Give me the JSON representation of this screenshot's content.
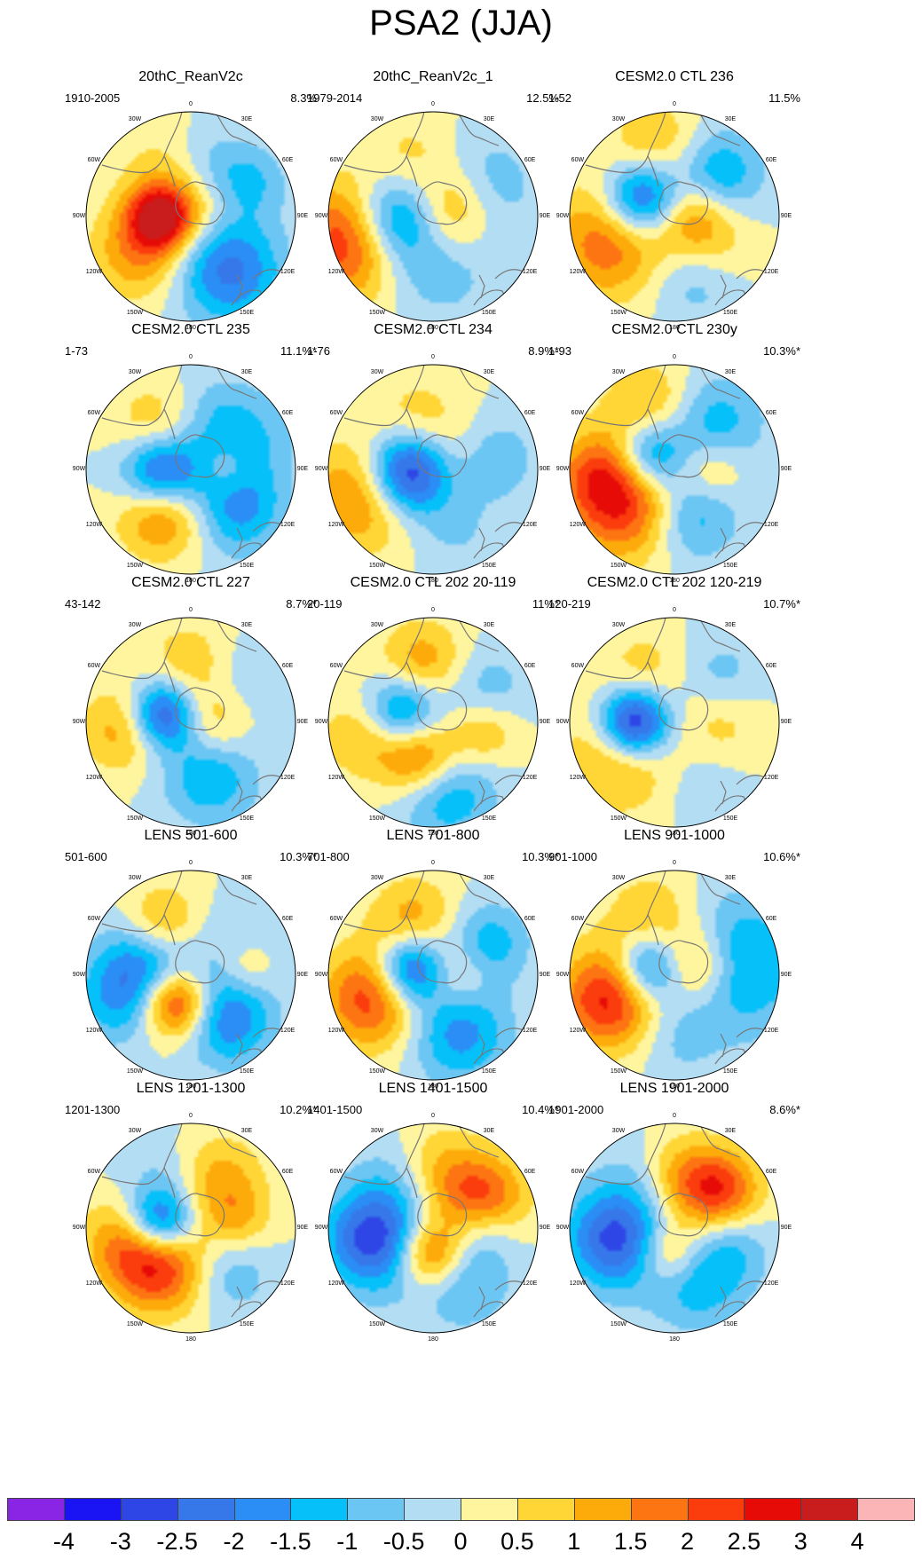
{
  "figure": {
    "title": "PSA2 (JJA)"
  },
  "longitude_labels": [
    "0",
    "30E",
    "60E",
    "90E",
    "120E",
    "150E",
    "180",
    "150W",
    "120W",
    "90W",
    "60W",
    "30W"
  ],
  "panels": [
    {
      "title": "20thC_ReanV2c",
      "range": "1910-2005",
      "pct": "8.3%",
      "blobs": [
        [
          -90,
          0.28,
          3.2,
          32,
          22
        ],
        [
          -125,
          0.6,
          1.5,
          52,
          28
        ],
        [
          145,
          0.62,
          -2.2,
          60,
          30
        ],
        [
          -30,
          0.55,
          0.6,
          45,
          30
        ],
        [
          60,
          0.65,
          -1,
          40,
          22
        ],
        [
          60,
          0.2,
          0.5,
          30,
          25
        ],
        [
          20,
          0.55,
          -0.6,
          40,
          25
        ]
      ]
    },
    {
      "title": "20thC_ReanV2c_1",
      "range": "1979-2014",
      "pct": "12.5%",
      "blobs": [
        [
          -95,
          0.38,
          -3,
          28,
          50
        ],
        [
          -105,
          0.78,
          3,
          32,
          65
        ],
        [
          70,
          0.2,
          1.6,
          35,
          30
        ],
        [
          -20,
          0.55,
          0.8,
          40,
          35
        ],
        [
          60,
          0.55,
          -1,
          45,
          40
        ],
        [
          160,
          0.65,
          -0.5,
          40,
          30
        ],
        [
          -160,
          0.6,
          -0.5,
          40,
          30
        ]
      ]
    },
    {
      "title": "CESM2.0 CTL 236",
      "range": "1-52",
      "pct": "11.5%",
      "blobs": [
        [
          -60,
          0.35,
          -3.2,
          30,
          32
        ],
        [
          -110,
          0.65,
          2,
          52,
          40
        ],
        [
          90,
          0.18,
          1.8,
          38,
          28
        ],
        [
          45,
          0.55,
          -1.8,
          42,
          30
        ],
        [
          -15,
          0.65,
          1.2,
          45,
          32
        ],
        [
          160,
          0.6,
          -1,
          45,
          30
        ],
        [
          130,
          0.55,
          0.6,
          40,
          28
        ]
      ]
    },
    {
      "title": "CESM2.0 CTL 235",
      "range": "1-73",
      "pct": "11.1%*",
      "blobs": [
        [
          -100,
          0.28,
          -3.5,
          30,
          35
        ],
        [
          -145,
          0.45,
          2.5,
          45,
          28
        ],
        [
          130,
          0.55,
          -1.8,
          38,
          38
        ],
        [
          -40,
          0.5,
          1.2,
          40,
          30
        ],
        [
          60,
          0.6,
          -1,
          45,
          35
        ],
        [
          90,
          0.35,
          0.8,
          25,
          20
        ],
        [
          20,
          0.55,
          -0.6,
          40,
          28
        ]
      ]
    },
    {
      "title": "CESM2.0 CTL 234",
      "range": "1-76",
      "pct": "8.9%*",
      "blobs": [
        [
          -95,
          0.22,
          -3.8,
          28,
          40
        ],
        [
          -110,
          0.72,
          1.8,
          35,
          55
        ],
        [
          60,
          0.2,
          1,
          40,
          35
        ],
        [
          80,
          0.55,
          -1.2,
          40,
          30
        ],
        [
          -20,
          0.5,
          0.8,
          40,
          30
        ],
        [
          160,
          0.6,
          -0.6,
          40,
          30
        ]
      ]
    },
    {
      "title": "CESM2.0 CTL 230y",
      "range": "1-93",
      "pct": "10.3%*",
      "blobs": [
        [
          -60,
          0.28,
          -2.5,
          30,
          28
        ],
        [
          -120,
          0.55,
          2.8,
          50,
          42
        ],
        [
          160,
          0.45,
          -1.6,
          45,
          30
        ],
        [
          40,
          0.55,
          -1.5,
          45,
          35
        ],
        [
          -20,
          0.62,
          1.3,
          45,
          30
        ],
        [
          90,
          0.35,
          1.2,
          30,
          25
        ],
        [
          -90,
          0.75,
          1,
          35,
          30
        ]
      ]
    },
    {
      "title": "CESM2.0 CTL 227",
      "range": "43-142",
      "pct": "8.7%*",
      "blobs": [
        [
          -75,
          0.28,
          -3,
          26,
          30
        ],
        [
          -95,
          0.62,
          1.5,
          30,
          38
        ],
        [
          90,
          0.22,
          1.2,
          32,
          28
        ],
        [
          160,
          0.55,
          -1.5,
          45,
          32
        ],
        [
          0,
          0.55,
          1,
          40,
          30
        ],
        [
          50,
          0.6,
          -0.6,
          42,
          30
        ]
      ]
    },
    {
      "title": "CESM2.0 CTL 202 20-119",
      "range": "20-119",
      "pct": "11%*",
      "blobs": [
        [
          -70,
          0.3,
          -2.5,
          30,
          30
        ],
        [
          -160,
          0.35,
          2.5,
          40,
          28
        ],
        [
          170,
          0.65,
          -1.8,
          48,
          32
        ],
        [
          -10,
          0.55,
          1.5,
          40,
          30
        ],
        [
          60,
          0.55,
          -1,
          42,
          30
        ],
        [
          100,
          0.5,
          1.3,
          28,
          28
        ],
        [
          -100,
          0.7,
          1,
          35,
          32
        ]
      ]
    },
    {
      "title": "CESM2.0 CTL 202 120-219",
      "range": "120-219",
      "pct": "10.7%*",
      "blobs": [
        [
          -90,
          0.38,
          -4,
          26,
          32
        ],
        [
          -120,
          0.55,
          1.6,
          45,
          45
        ],
        [
          45,
          0.6,
          -0.8,
          40,
          30
        ],
        [
          90,
          0.45,
          0.8,
          35,
          30
        ],
        [
          -30,
          0.55,
          0.8,
          40,
          30
        ],
        [
          160,
          0.6,
          -0.5,
          40,
          30
        ]
      ]
    },
    {
      "title": "LENS 501-600",
      "range": "501-600",
      "pct": "10.3%*",
      "blobs": [
        [
          -80,
          0.42,
          -2.2,
          45,
          35
        ],
        [
          -150,
          0.3,
          3.2,
          30,
          26
        ],
        [
          140,
          0.55,
          -2,
          40,
          32
        ],
        [
          -30,
          0.55,
          1.6,
          35,
          28
        ],
        [
          60,
          0.55,
          -0.6,
          42,
          30
        ],
        [
          80,
          0.55,
          1,
          22,
          22
        ],
        [
          -110,
          0.78,
          -1,
          40,
          30
        ]
      ]
    },
    {
      "title": "LENS 701-800",
      "range": "701-800",
      "pct": "10.3%*",
      "blobs": [
        [
          -75,
          0.22,
          -3,
          26,
          30
        ],
        [
          -110,
          0.62,
          2.4,
          35,
          45
        ],
        [
          155,
          0.6,
          -1.8,
          45,
          35
        ],
        [
          60,
          0.6,
          -1.4,
          35,
          30
        ],
        [
          -20,
          0.55,
          1.3,
          40,
          30
        ],
        [
          90,
          0.25,
          1,
          30,
          25
        ]
      ]
    },
    {
      "title": "LENS 901-1000",
      "range": "901-1000",
      "pct": "10.6%*",
      "blobs": [
        [
          -75,
          0.25,
          -2.5,
          26,
          30
        ],
        [
          -110,
          0.65,
          2.8,
          35,
          45
        ],
        [
          80,
          0.6,
          -1.8,
          45,
          65
        ],
        [
          70,
          0.22,
          1.8,
          35,
          28
        ],
        [
          -20,
          0.55,
          1.1,
          45,
          35
        ],
        [
          180,
          0.6,
          -0.6,
          40,
          30
        ]
      ]
    },
    {
      "title": "LENS 1201-1300",
      "range": "1201-1300",
      "pct": "10.2%*",
      "blobs": [
        [
          -80,
          0.3,
          -3,
          26,
          28
        ],
        [
          -140,
          0.45,
          2.6,
          50,
          30
        ],
        [
          -100,
          0.65,
          1.2,
          35,
          35
        ],
        [
          140,
          0.55,
          -1,
          40,
          30
        ],
        [
          30,
          0.55,
          1.2,
          40,
          30
        ],
        [
          80,
          0.45,
          1,
          30,
          25
        ],
        [
          -30,
          0.6,
          -0.5,
          40,
          28
        ]
      ]
    },
    {
      "title": "LENS 1401-1500",
      "range": "1401-1500",
      "pct": "10.4%*",
      "blobs": [
        [
          -100,
          0.55,
          -3,
          40,
          40
        ],
        [
          -170,
          0.25,
          2.6,
          28,
          28
        ],
        [
          60,
          0.55,
          2.2,
          40,
          30
        ],
        [
          150,
          0.55,
          -1.2,
          45,
          35
        ],
        [
          -30,
          0.6,
          -0.8,
          40,
          30
        ],
        [
          0,
          0.55,
          1.2,
          45,
          30
        ],
        [
          90,
          0.5,
          -0.8,
          30,
          25
        ]
      ]
    },
    {
      "title": "LENS 1901-2000",
      "range": "1901-2000",
      "pct": "8.6%*",
      "blobs": [
        [
          -100,
          0.55,
          -2.8,
          40,
          40
        ],
        [
          -170,
          0.25,
          1.8,
          28,
          28
        ],
        [
          50,
          0.55,
          2.4,
          38,
          28
        ],
        [
          160,
          0.55,
          -1.4,
          45,
          30
        ],
        [
          0,
          0.5,
          1.2,
          38,
          30
        ],
        [
          110,
          0.55,
          -1,
          40,
          30
        ],
        [
          -30,
          0.6,
          -0.6,
          40,
          28
        ]
      ]
    }
  ],
  "colorbar": {
    "colors": [
      "#8a25e6",
      "#1a14f5",
      "#2f46e6",
      "#3678ea",
      "#2a8ef6",
      "#06c0fa",
      "#6cc6f3",
      "#b3ddf3",
      "#fef59e",
      "#ffd636",
      "#fdab0a",
      "#fd7513",
      "#fb3c0d",
      "#e60b07",
      "#c81d1c",
      "#fcb5b6"
    ],
    "ticks": [
      "-4",
      "-3",
      "-2.5",
      "-2",
      "-1.5",
      "-1",
      "-0.5",
      "0",
      "0.5",
      "1",
      "1.5",
      "2",
      "2.5",
      "3",
      "4"
    ],
    "levels": [
      -4,
      -3,
      -2.5,
      -2,
      -1.5,
      -1,
      -0.5,
      0,
      0.5,
      1,
      1.5,
      2,
      2.5,
      3,
      4
    ]
  }
}
